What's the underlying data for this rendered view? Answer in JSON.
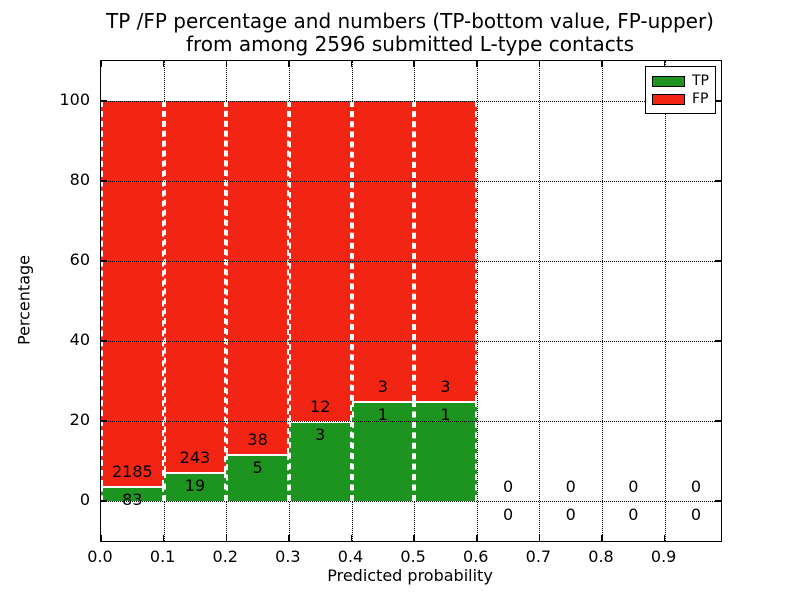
{
  "figure": {
    "title_line1": "TP /FP percentage and numbers (TP-bottom value, FP-upper)",
    "title_line2": "from among 2596 submitted L-type contacts"
  },
  "chart_data": {
    "type": "bar",
    "stacked": true,
    "title": "TP /FP percentage and numbers (TP-bottom value, FP-upper) from among 2596 submitted L-type contacts",
    "xlabel": "Predicted probability",
    "ylabel": "Percentage",
    "xlim": [
      0.0,
      0.99
    ],
    "ylim": [
      -10,
      110
    ],
    "x_ticks": [
      "0.0",
      "0.1",
      "0.2",
      "0.3",
      "0.4",
      "0.5",
      "0.6",
      "0.7",
      "0.8",
      "0.9"
    ],
    "y_ticks": [
      0,
      20,
      40,
      60,
      80,
      100
    ],
    "grid": "dotted",
    "bar_edge_style": "white dashed",
    "total_contacts": 2596,
    "legend": {
      "position": "upper right",
      "entries": [
        {
          "label": "TP",
          "color": "#1e9420"
        },
        {
          "label": "FP",
          "color": "#f22413"
        }
      ]
    },
    "annotation_rule": "FP count printed above green top, TP count printed below green top; green height = TP/(TP+FP)*100",
    "bins": [
      {
        "range": [
          0.0,
          0.1
        ],
        "tp": 83,
        "fp": 2185
      },
      {
        "range": [
          0.1,
          0.2
        ],
        "tp": 19,
        "fp": 243
      },
      {
        "range": [
          0.2,
          0.3
        ],
        "tp": 5,
        "fp": 38
      },
      {
        "range": [
          0.3,
          0.4
        ],
        "tp": 3,
        "fp": 12
      },
      {
        "range": [
          0.4,
          0.5
        ],
        "tp": 1,
        "fp": 3
      },
      {
        "range": [
          0.5,
          0.6
        ],
        "tp": 1,
        "fp": 3
      },
      {
        "range": [
          0.6,
          0.7
        ],
        "tp": 0,
        "fp": 0,
        "empty": true
      },
      {
        "range": [
          0.7,
          0.8
        ],
        "tp": 0,
        "fp": 0,
        "empty": true
      },
      {
        "range": [
          0.8,
          0.9
        ],
        "tp": 0,
        "fp": 0,
        "empty": true
      },
      {
        "range": [
          0.9,
          1.0
        ],
        "tp": 0,
        "fp": 0,
        "empty": true,
        "label_center": 0.95
      }
    ]
  }
}
